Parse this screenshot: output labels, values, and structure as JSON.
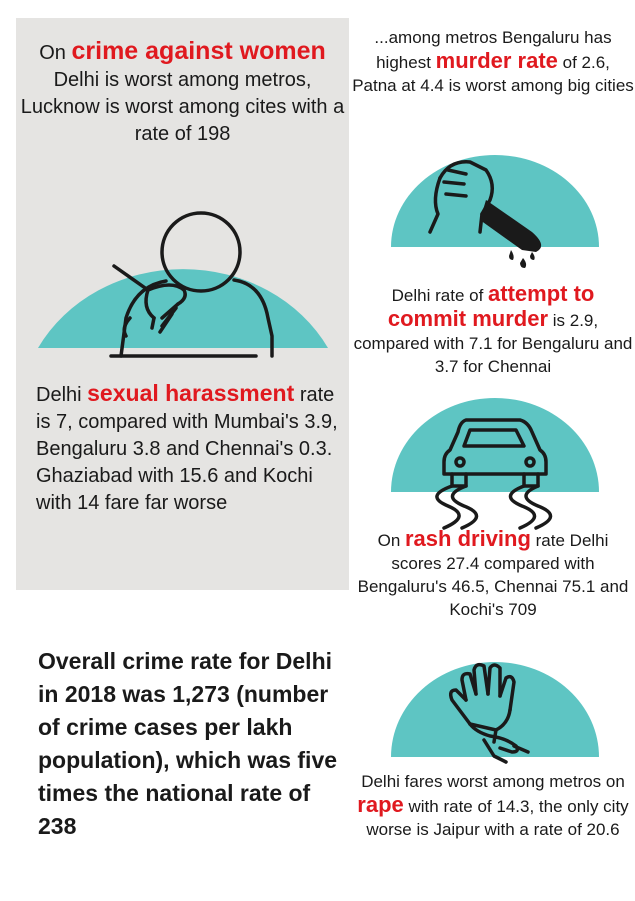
{
  "women": {
    "line1_pre": "On ",
    "line1_hl": "crime against women",
    "rest": "Delhi is worst among metros, Lucknow is worst among cites with a rate of 198"
  },
  "harassment": {
    "pre": "Delhi ",
    "hl": "sexual harassment",
    "post": " rate is 7, compared with Mumbai's 3.9, Bengaluru 3.8 and Chennai's 0.3. Ghaziabad with 15.6 and Kochi with 14 fare far worse"
  },
  "overall": {
    "text": "Overall crime rate for Delhi in 2018 was 1,273 (number of crime cases per lakh population), which was five times the national rate of 238"
  },
  "murder": {
    "pre": "...among metros Bengaluru has highest ",
    "hl": "murder rate",
    "post": " of 2.6, Patna at 4.4 is worst among big cities"
  },
  "attempt": {
    "pre": "Delhi rate of ",
    "hl": "attempt to commit murder",
    "post": " is 2.9, compared with 7.1 for Bengaluru and 3.7 for Chennai"
  },
  "rash": {
    "pre": "On ",
    "hl": "rash driving",
    "post": " rate Delhi scores 27.4 compared with Bengaluru's 46.5, Chennai 75.1 and Kochi's 709"
  },
  "rape": {
    "pre": "Delhi fares worst among metros on ",
    "hl": "rape",
    "post": " with rate of 14.3, the only city worse is Jaipur with a rate of 20.6"
  },
  "colors": {
    "teal": "#5ec5c3",
    "red": "#e0191f",
    "panel": "#e5e4e2"
  },
  "icons": [
    "person-hand-icon",
    "knife-hand-icon",
    "skidding-car-icon",
    "grabbed-hand-icon"
  ]
}
